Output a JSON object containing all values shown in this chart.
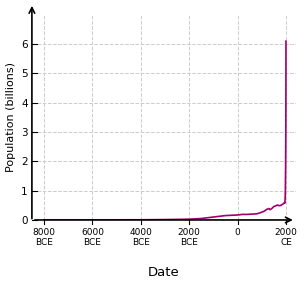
{
  "title": "",
  "xlabel": "Date",
  "ylabel": "Population (billions)",
  "line_color": "#a0006e",
  "line_width": 1.2,
  "ylim": [
    0,
    7
  ],
  "yticks": [
    0,
    1,
    2,
    3,
    4,
    5,
    6
  ],
  "background_color": "#ffffff",
  "grid_color": "#cccccc",
  "x_tick_positions": [
    -8000,
    -6000,
    -4000,
    -2000,
    0,
    2000
  ],
  "x_tick_labels": [
    "8000\nBCE",
    "6000\nBCE",
    "4000\nBCE",
    "2000\nBCE",
    "0",
    "2000\nCE"
  ],
  "pop_data_years": [
    -8000,
    -7000,
    -6500,
    -6000,
    -5000,
    -4500,
    -4000,
    -3500,
    -3000,
    -2500,
    -2000,
    -1500,
    -1000,
    -500,
    1,
    200,
    400,
    600,
    800,
    1000,
    1100,
    1200,
    1300,
    1340,
    1400,
    1500,
    1600,
    1650,
    1700,
    1750,
    1800,
    1820,
    1850,
    1900,
    1920,
    1930,
    1940,
    1950,
    1960,
    1970,
    1975,
    1980,
    1985,
    1990,
    1995,
    2000
  ],
  "pop_data_values": [
    0.005,
    0.005,
    0.005,
    0.005,
    0.005,
    0.007,
    0.007,
    0.01,
    0.014,
    0.02,
    0.027,
    0.05,
    0.1,
    0.15,
    0.17,
    0.19,
    0.19,
    0.2,
    0.21,
    0.265,
    0.3,
    0.36,
    0.39,
    0.35,
    0.38,
    0.46,
    0.49,
    0.51,
    0.49,
    0.49,
    0.5,
    0.52,
    0.53,
    0.56,
    0.58,
    0.59,
    0.59,
    0.57,
    0.62,
    0.85,
    1.05,
    1.45,
    1.85,
    2.5,
    3.5,
    6.1
  ]
}
